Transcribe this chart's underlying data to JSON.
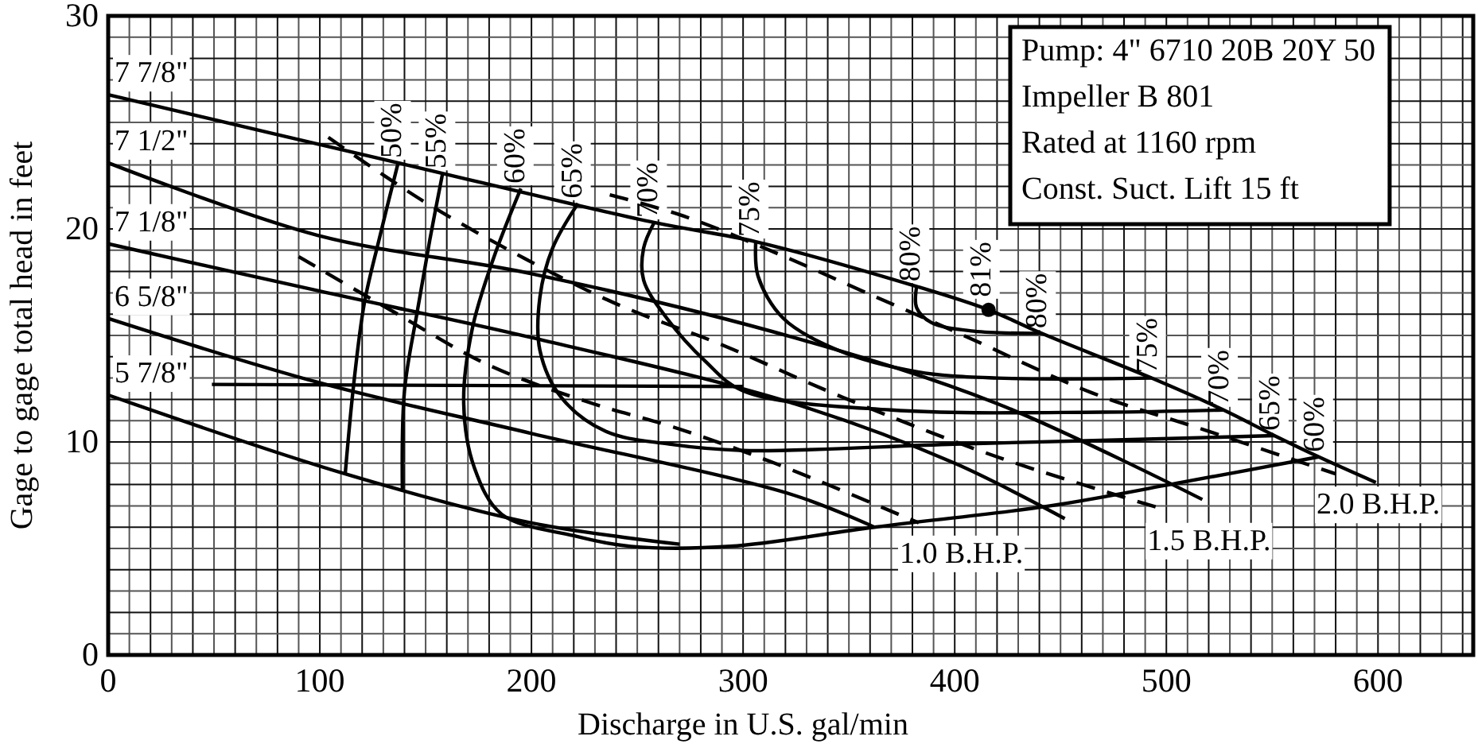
{
  "chart_data": {
    "type": "line",
    "xlabel": "Discharge in U.S. gal/min",
    "ylabel": "Gage to gage total head in feet",
    "xlim": [
      0,
      645
    ],
    "ylim": [
      0,
      30
    ],
    "grid": true,
    "line_style": "solid",
    "marker": "none",
    "xticks": [
      0,
      {
        "value": 10,
        "label": null
      },
      {
        "value": 20,
        "label": null
      },
      {
        "value": 30,
        "label": null
      },
      {
        "value": 40,
        "label": null
      },
      {
        "value": 50,
        "label": null
      },
      {
        "value": 60,
        "label": null
      },
      {
        "value": 70,
        "label": null
      },
      {
        "value": 80,
        "label": null
      },
      {
        "value": 90,
        "label": null
      },
      100,
      {
        "value": 110,
        "label": null
      },
      {
        "value": 120,
        "label": null
      },
      {
        "value": 130,
        "label": null
      },
      {
        "value": 140,
        "label": null
      },
      {
        "value": 150,
        "label": null
      },
      {
        "value": 160,
        "label": null
      },
      {
        "value": 170,
        "label": null
      },
      {
        "value": 180,
        "label": null
      },
      {
        "value": 190,
        "label": null
      },
      200,
      {
        "value": 210,
        "label": null
      },
      {
        "value": 220,
        "label": null
      },
      {
        "value": 230,
        "label": null
      },
      {
        "value": 240,
        "label": null
      },
      {
        "value": 250,
        "label": null
      },
      {
        "value": 260,
        "label": null
      },
      {
        "value": 270,
        "label": null
      },
      {
        "value": 280,
        "label": null
      },
      {
        "value": 290,
        "label": null
      },
      300,
      {
        "value": 310,
        "label": null
      },
      {
        "value": 320,
        "label": null
      },
      {
        "value": 330,
        "label": null
      },
      {
        "value": 340,
        "label": null
      },
      {
        "value": 350,
        "label": null
      },
      {
        "value": 360,
        "label": null
      },
      {
        "value": 370,
        "label": null
      },
      {
        "value": 380,
        "label": null
      },
      {
        "value": 390,
        "label": null
      },
      400,
      {
        "value": 410,
        "label": null
      },
      {
        "value": 420,
        "label": null
      },
      {
        "value": 430,
        "label": null
      },
      {
        "value": 440,
        "label": null
      },
      {
        "value": 450,
        "label": null
      },
      {
        "value": 460,
        "label": null
      },
      {
        "value": 470,
        "label": null
      },
      {
        "value": 480,
        "label": null
      },
      {
        "value": 490,
        "label": null
      },
      500,
      {
        "value": 510,
        "label": null
      },
      {
        "value": 520,
        "label": null
      },
      {
        "value": 530,
        "label": null
      },
      {
        "value": 540,
        "label": null
      },
      {
        "value": 550,
        "label": null
      },
      {
        "value": 560,
        "label": null
      },
      {
        "value": 570,
        "label": null
      },
      {
        "value": 580,
        "label": null
      },
      {
        "value": 590,
        "label": null
      },
      600,
      {
        "value": 610,
        "label": null
      },
      {
        "value": 620,
        "label": null
      },
      {
        "value": 630,
        "label": null
      },
      {
        "value": 640,
        "label": null
      }
    ],
    "yticks": [
      0,
      {
        "value": 1,
        "label": null
      },
      {
        "value": 2,
        "label": null
      },
      {
        "value": 3,
        "label": null
      },
      {
        "value": 4,
        "label": null
      },
      {
        "value": 5,
        "label": null
      },
      {
        "value": 6,
        "label": null
      },
      {
        "value": 7,
        "label": null
      },
      {
        "value": 8,
        "label": null
      },
      {
        "value": 9,
        "label": null
      },
      10,
      {
        "value": 11,
        "label": null
      },
      {
        "value": 12,
        "label": null
      },
      {
        "value": 13,
        "label": null
      },
      {
        "value": 14,
        "label": null
      },
      {
        "value": 15,
        "label": null
      },
      {
        "value": 16,
        "label": null
      },
      {
        "value": 17,
        "label": null
      },
      {
        "value": 18,
        "label": null
      },
      {
        "value": 19,
        "label": null
      },
      20,
      {
        "value": 21,
        "label": null
      },
      {
        "value": 22,
        "label": null
      },
      {
        "value": 23,
        "label": null
      },
      {
        "value": 24,
        "label": null
      },
      {
        "value": 25,
        "label": null
      },
      {
        "value": 26,
        "label": null
      },
      {
        "value": 27,
        "label": null
      },
      {
        "value": 28,
        "label": null
      },
      {
        "value": 29,
        "label": null
      },
      30
    ],
    "series": [
      {
        "name": "7 7/8\"",
        "color": "#000000",
        "x": [
          0,
          137,
          258,
          306,
          382,
          416,
          441,
          493,
          527,
          551,
          572,
          599
        ],
        "values": [
          26.3,
          23.1,
          20.3,
          19.4,
          17.3,
          16.2,
          15.1,
          13.0,
          11.5,
          10.3,
          9.3,
          8.1
        ]
      },
      {
        "name": "7 1/2\"",
        "color": "#000000",
        "x": [
          0,
          99,
          200,
          324,
          420,
          517
        ],
        "values": [
          23.1,
          19.7,
          17.9,
          14.9,
          11.8,
          7.3
        ]
      },
      {
        "name": "7 1/8\"",
        "color": "#000000",
        "x": [
          0,
          99,
          200,
          324,
          400,
          452
        ],
        "values": [
          19.3,
          17.1,
          14.9,
          11.8,
          9.0,
          6.4
        ]
      },
      {
        "name": "6 5/8\"",
        "color": "#000000",
        "x": [
          0,
          99,
          200,
          324,
          362
        ],
        "values": [
          15.8,
          12.8,
          10.4,
          7.5,
          6.0
        ]
      },
      {
        "name": "5 7/8\"",
        "color": "#000000",
        "x": [
          0,
          112,
          200,
          270
        ],
        "values": [
          12.2,
          8.5,
          6.2,
          5.2
        ]
      },
      {
        "color": "#000000",
        "x": [
          49,
          300
        ],
        "values": [
          12.7,
          12.6
        ]
      },
      {
        "name": "50%",
        "color": "#000000",
        "x": [
          137,
          128,
          121,
          116,
          112
        ],
        "values": [
          23.1,
          19.5,
          16.5,
          12.7,
          8.5
        ]
      },
      {
        "name": "55%",
        "color": "#000000",
        "x": [
          158,
          152,
          146,
          140,
          139
        ],
        "values": [
          22.6,
          19.5,
          16.1,
          12.4,
          7.8
        ]
      },
      {
        "name": "60%",
        "color": "#000000",
        "x": [
          195,
          182,
          172,
          168,
          173,
          186,
          220,
          247,
          294,
          362,
          445,
          507,
          572
        ],
        "values": [
          21.9,
          18.6,
          15.3,
          11.8,
          8.8,
          6.6,
          5.6,
          5.1,
          5.1,
          6.0,
          7.0,
          8.1,
          9.3
        ]
      },
      {
        "name": "65%",
        "color": "#000000",
        "x": [
          222,
          210,
          204,
          204,
          214,
          235,
          265,
          300,
          400,
          480,
          551
        ],
        "values": [
          21.2,
          19.1,
          16.8,
          14.3,
          12.1,
          10.5,
          9.9,
          9.6,
          9.9,
          10.1,
          10.3
        ]
      },
      {
        "name": "70%",
        "color": "#000000",
        "x": [
          258,
          253,
          253,
          264,
          282,
          300,
          370,
          470,
          527
        ],
        "values": [
          20.3,
          19.1,
          17.6,
          15.8,
          13.8,
          12.4,
          11.5,
          11.4,
          11.5
        ]
      },
      {
        "name": "75%",
        "color": "#000000",
        "x": [
          306,
          307,
          319,
          345,
          382,
          420,
          493
        ],
        "values": [
          19.4,
          17.8,
          15.8,
          14.3,
          13.3,
          13.0,
          13.0
        ]
      },
      {
        "name": "80%",
        "color": "#000000",
        "x": [
          382,
          382,
          389,
          409,
          441
        ],
        "values": [
          17.3,
          16.3,
          15.6,
          15.2,
          15.1
        ]
      },
      {
        "name": "81%",
        "type": "scatter",
        "marker": "circle",
        "color": "#000000",
        "x": [
          416
        ],
        "values": [
          16.2
        ]
      },
      {
        "name": "1.0 B.H.P.",
        "line_style": "dashed",
        "color": "#000000",
        "x": [
          90,
          135,
          180,
          229,
          267,
          315,
          383
        ],
        "values": [
          18.7,
          16.1,
          13.6,
          11.8,
          10.7,
          9.0,
          6.2
        ]
      },
      {
        "name": "1.5 B.H.P.",
        "line_style": "dashed",
        "color": "#000000",
        "x": [
          104,
          149,
          197,
          242,
          289,
          347,
          420,
          500
        ],
        "values": [
          24.3,
          21.3,
          18.6,
          16.4,
          14.6,
          12.1,
          9.3,
          6.8
        ]
      },
      {
        "name": "2.0 B.H.P.",
        "line_style": "dashed",
        "color": "#000000",
        "x": [
          237,
          272,
          322,
          356,
          402,
          465,
          520,
          580
        ],
        "values": [
          21.6,
          20.6,
          18.6,
          17.1,
          15.1,
          12.3,
          10.5,
          8.5
        ]
      }
    ],
    "annotations": [
      "Pump: 4\" 6710 20B 20Y 50",
      "Impeller B 801",
      "Rated at 1160 rpm",
      "Const. Suct. Lift 15 ft",
      {
        "text": "80%",
        "x": 441,
        "y": 15.1
      },
      {
        "text": "75%",
        "x": 493,
        "y": 13.0
      },
      {
        "text": "70%",
        "x": 527,
        "y": 11.5
      },
      {
        "text": "65%",
        "x": 551,
        "y": 10.3
      },
      {
        "text": "60%",
        "x": 572,
        "y": 9.3
      }
    ]
  }
}
